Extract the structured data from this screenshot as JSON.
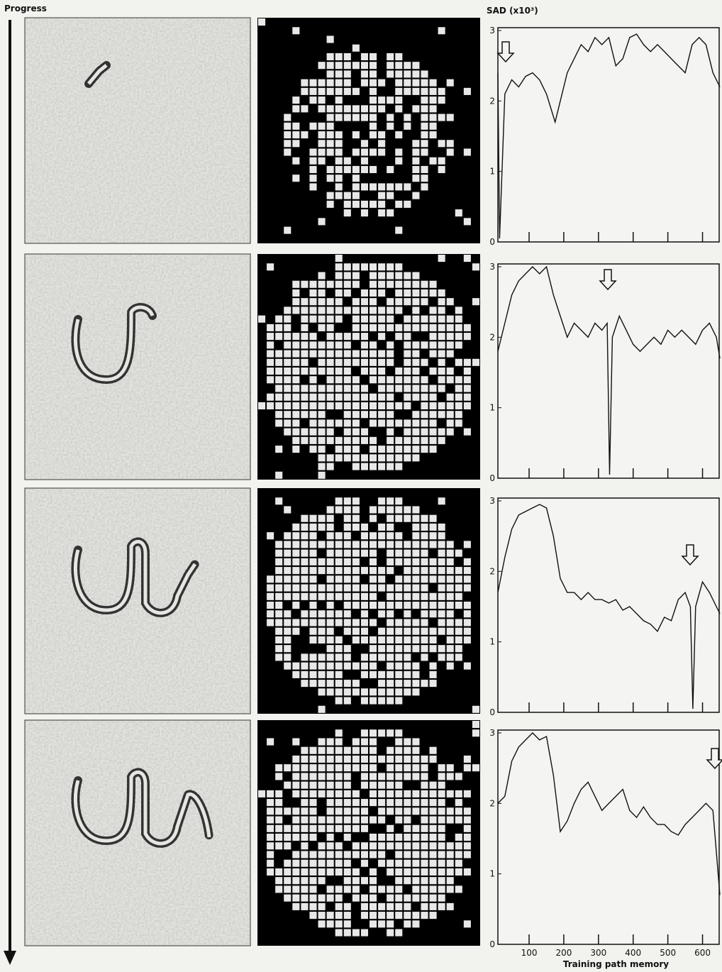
{
  "labels": {
    "progress": "Progress"
  },
  "chart_data": [
    {
      "type": "line",
      "ylabel": "SAD (x10³)",
      "color": "#111111",
      "xlim": [
        10,
        650
      ],
      "ylim": [
        0,
        3
      ],
      "yticks": [
        0,
        1,
        2,
        3
      ],
      "x": [
        10,
        15,
        30,
        50,
        70,
        90,
        110,
        130,
        150,
        175,
        190,
        210,
        230,
        250,
        270,
        290,
        310,
        330,
        350,
        370,
        390,
        410,
        430,
        450,
        470,
        490,
        510,
        530,
        550,
        570,
        590,
        610,
        630,
        650
      ],
      "values": [
        2.4,
        0.05,
        2.1,
        2.3,
        2.2,
        2.35,
        2.4,
        2.3,
        2.1,
        1.7,
        2.0,
        2.4,
        2.6,
        2.8,
        2.7,
        2.9,
        2.8,
        2.9,
        2.5,
        2.6,
        2.9,
        2.95,
        2.8,
        2.7,
        2.8,
        2.7,
        2.6,
        2.5,
        2.4,
        2.8,
        2.9,
        2.8,
        2.4,
        2.2
      ]
    },
    {
      "type": "line",
      "color": "#111111",
      "xlim": [
        10,
        650
      ],
      "ylim": [
        0,
        3
      ],
      "yticks": [
        0,
        1,
        2,
        3
      ],
      "x": [
        10,
        30,
        50,
        70,
        90,
        110,
        130,
        150,
        170,
        190,
        210,
        230,
        250,
        270,
        290,
        310,
        325,
        332,
        340,
        360,
        380,
        400,
        420,
        440,
        460,
        480,
        500,
        520,
        540,
        560,
        580,
        600,
        620,
        640,
        650
      ],
      "values": [
        1.8,
        2.2,
        2.6,
        2.8,
        2.9,
        3.0,
        2.9,
        3.0,
        2.6,
        2.3,
        2.0,
        2.2,
        2.1,
        2.0,
        2.2,
        2.1,
        2.2,
        0.05,
        2.0,
        2.3,
        2.1,
        1.9,
        1.8,
        1.9,
        2.0,
        1.9,
        2.1,
        2.0,
        2.1,
        2.0,
        1.9,
        2.1,
        2.2,
        2.0,
        1.7
      ]
    },
    {
      "type": "line",
      "color": "#111111",
      "xlim": [
        10,
        650
      ],
      "ylim": [
        0,
        3
      ],
      "yticks": [
        0,
        1,
        2,
        3
      ],
      "x": [
        10,
        30,
        50,
        70,
        90,
        110,
        130,
        150,
        170,
        190,
        210,
        230,
        250,
        270,
        290,
        310,
        330,
        350,
        370,
        390,
        410,
        430,
        450,
        470,
        490,
        510,
        530,
        550,
        565,
        572,
        580,
        600,
        620,
        640,
        650
      ],
      "values": [
        1.7,
        2.2,
        2.6,
        2.8,
        2.85,
        2.9,
        2.95,
        2.9,
        2.5,
        1.9,
        1.7,
        1.7,
        1.6,
        1.7,
        1.6,
        1.6,
        1.55,
        1.6,
        1.45,
        1.5,
        1.4,
        1.3,
        1.25,
        1.15,
        1.35,
        1.3,
        1.6,
        1.7,
        1.5,
        0.05,
        1.5,
        1.85,
        1.7,
        1.5,
        1.4
      ]
    },
    {
      "type": "line",
      "color": "#111111",
      "xlabel": "Training path memory",
      "xlim": [
        10,
        650
      ],
      "ylim": [
        0,
        3
      ],
      "yticks": [
        0,
        1,
        2,
        3
      ],
      "xticks": [
        100,
        200,
        300,
        400,
        500,
        600
      ],
      "x": [
        10,
        30,
        50,
        70,
        90,
        110,
        130,
        150,
        170,
        190,
        210,
        230,
        250,
        270,
        290,
        310,
        330,
        350,
        370,
        390,
        410,
        430,
        450,
        470,
        490,
        510,
        530,
        550,
        570,
        590,
        610,
        630,
        640,
        650
      ],
      "values": [
        2.0,
        2.1,
        2.6,
        2.8,
        2.9,
        3.0,
        2.9,
        2.95,
        2.4,
        1.6,
        1.75,
        2.0,
        2.2,
        2.3,
        2.1,
        1.9,
        2.0,
        2.1,
        2.2,
        1.9,
        1.8,
        1.95,
        1.8,
        1.7,
        1.7,
        1.6,
        1.55,
        1.7,
        1.8,
        1.9,
        2.0,
        1.9,
        1.3,
        0.7
      ]
    }
  ]
}
